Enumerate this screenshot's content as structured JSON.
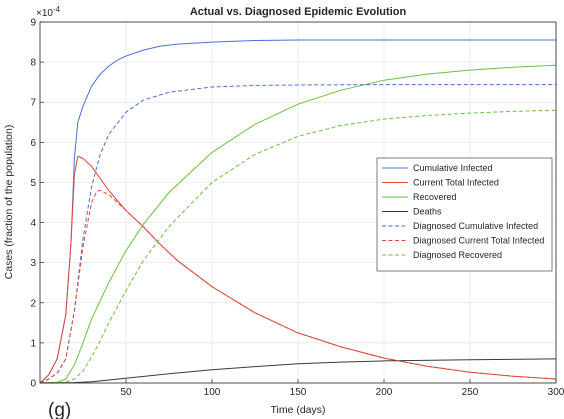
{
  "chart_data": {
    "type": "line",
    "title": "Actual vs. Diagnosed Epidemic Evolution",
    "xlabel": "Time (days)",
    "ylabel": "Cases (fraction of the population)",
    "panel_label": "(g)",
    "xlim": [
      0,
      300
    ],
    "ylim": [
      0,
      9
    ],
    "y_exponent_label": "×10",
    "y_exponent_power": "-4",
    "x_ticks": [
      50,
      100,
      150,
      200,
      250,
      300
    ],
    "x_tick_labels": [
      "50",
      "100",
      "150",
      "200",
      "250",
      "300"
    ],
    "y_ticks": [
      0,
      1,
      2,
      3,
      4,
      5,
      6,
      7,
      8,
      9
    ],
    "y_tick_labels": [
      "0",
      "1",
      "2",
      "3",
      "4",
      "5",
      "6",
      "7",
      "8",
      "9"
    ],
    "grid": true,
    "legend_position": "center-right",
    "series": [
      {
        "name": "Cumulative Infected",
        "color": "#4a6fdc",
        "dash": "solid",
        "x": [
          0,
          5,
          10,
          15,
          18,
          20,
          22,
          25,
          30,
          35,
          40,
          45,
          50,
          60,
          70,
          80,
          100,
          125,
          150,
          200,
          250,
          300
        ],
        "y": [
          0,
          0.2,
          0.6,
          1.7,
          3.5,
          5.6,
          6.5,
          6.9,
          7.4,
          7.7,
          7.9,
          8.05,
          8.15,
          8.3,
          8.4,
          8.45,
          8.5,
          8.54,
          8.55,
          8.55,
          8.55,
          8.55
        ]
      },
      {
        "name": "Current Total Infected",
        "color": "#e04a3c",
        "dash": "solid",
        "x": [
          0,
          5,
          10,
          15,
          18,
          20,
          22,
          25,
          30,
          35,
          40,
          50,
          60,
          70,
          80,
          100,
          125,
          150,
          175,
          200,
          225,
          250,
          275,
          300
        ],
        "y": [
          0,
          0.2,
          0.6,
          1.7,
          3.5,
          5.2,
          5.65,
          5.6,
          5.4,
          5.1,
          4.8,
          4.3,
          3.9,
          3.45,
          3.05,
          2.4,
          1.75,
          1.25,
          0.9,
          0.62,
          0.42,
          0.27,
          0.17,
          0.1
        ]
      },
      {
        "name": "Recovered",
        "color": "#66c43a",
        "dash": "solid",
        "x": [
          0,
          10,
          15,
          20,
          25,
          30,
          40,
          50,
          60,
          75,
          100,
          125,
          150,
          175,
          200,
          225,
          250,
          275,
          300
        ],
        "y": [
          0,
          0.02,
          0.1,
          0.45,
          1.0,
          1.6,
          2.5,
          3.3,
          3.95,
          4.75,
          5.75,
          6.45,
          6.95,
          7.3,
          7.55,
          7.7,
          7.8,
          7.87,
          7.92
        ]
      },
      {
        "name": "Deaths",
        "color": "#3a3a3a",
        "dash": "solid",
        "x": [
          0,
          20,
          30,
          50,
          75,
          100,
          125,
          150,
          175,
          200,
          250,
          300
        ],
        "y": [
          0,
          0.01,
          0.03,
          0.12,
          0.23,
          0.33,
          0.41,
          0.48,
          0.52,
          0.55,
          0.58,
          0.6
        ]
      },
      {
        "name": "Diagnosed Cumulative Infected",
        "color": "#4a6fdc",
        "dash": "dashed",
        "x": [
          0,
          5,
          10,
          15,
          20,
          25,
          30,
          35,
          40,
          50,
          60,
          75,
          100,
          125,
          150,
          200,
          250,
          300
        ],
        "y": [
          0,
          0.1,
          0.25,
          0.6,
          1.8,
          3.6,
          4.9,
          5.7,
          6.2,
          6.75,
          7.05,
          7.25,
          7.38,
          7.42,
          7.43,
          7.44,
          7.44,
          7.44
        ]
      },
      {
        "name": "Diagnosed Current Total Infected",
        "color": "#e04a3c",
        "dash": "dashed",
        "x": [
          0,
          5,
          10,
          15,
          20,
          25,
          30,
          33,
          35,
          40,
          50,
          60,
          70,
          80,
          100,
          125,
          150,
          175,
          200,
          225,
          250,
          275,
          300
        ],
        "y": [
          0,
          0.1,
          0.25,
          0.6,
          1.8,
          3.4,
          4.5,
          4.78,
          4.8,
          4.7,
          4.3,
          3.9,
          3.45,
          3.05,
          2.4,
          1.75,
          1.25,
          0.9,
          0.62,
          0.42,
          0.27,
          0.17,
          0.1
        ]
      },
      {
        "name": "Diagnosed Recovered",
        "color": "#66c43a",
        "dash": "dashed",
        "x": [
          0,
          15,
          20,
          25,
          30,
          35,
          40,
          50,
          60,
          75,
          100,
          125,
          150,
          175,
          200,
          225,
          250,
          275,
          300
        ],
        "y": [
          0,
          0.02,
          0.1,
          0.3,
          0.65,
          1.05,
          1.5,
          2.3,
          3.05,
          3.9,
          5.0,
          5.7,
          6.15,
          6.42,
          6.58,
          6.67,
          6.73,
          6.77,
          6.8
        ]
      }
    ]
  }
}
